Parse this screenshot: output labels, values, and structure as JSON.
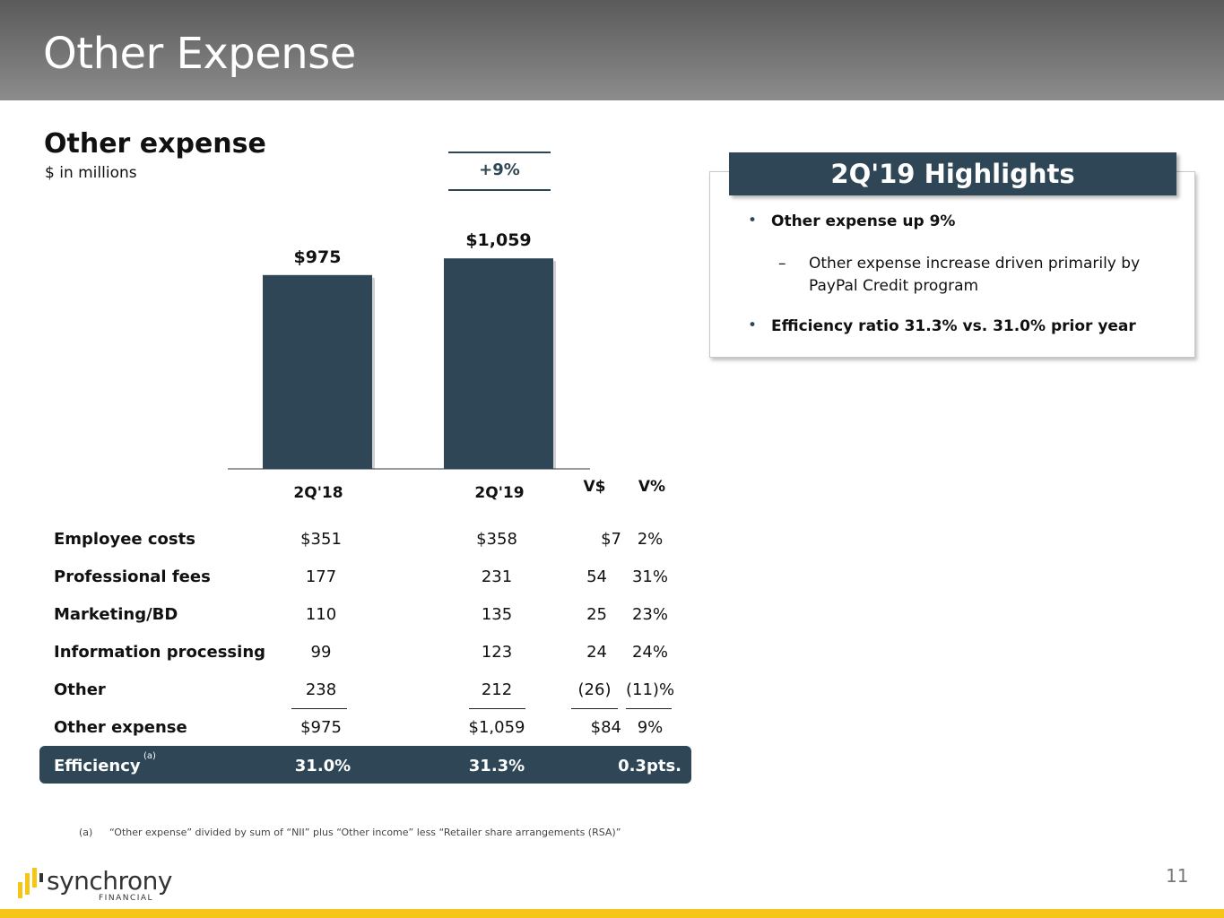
{
  "header": {
    "title": "Other Expense"
  },
  "section": {
    "title": "Other expense",
    "subtitle": "$ in millions",
    "growth": "+9%"
  },
  "chart_data": {
    "type": "bar",
    "categories": [
      "2Q'18",
      "2Q'19"
    ],
    "values": [
      975,
      1059
    ],
    "data_labels": [
      "$975",
      "$1,059"
    ],
    "title": "Other expense",
    "ylabel": "$ in millions",
    "ylim": [
      0,
      1100
    ],
    "bar_color": "#2e4656",
    "grid": false
  },
  "highlights": {
    "title": "2Q'19 Highlights",
    "bullet1": "Other expense up 9%",
    "sub1_dash": "–",
    "sub1_line1": "Other expense increase driven primarily by",
    "sub1_line2": "PayPal Credit program",
    "bullet2": "Efficiency ratio 31.3% vs. 31.0% prior year",
    "bullet_char": "•"
  },
  "table": {
    "headers": {
      "c1": "2Q'18",
      "c2": "2Q'19",
      "c3": "V$",
      "c4": "V%"
    },
    "rows": [
      {
        "label": "Employee costs",
        "q18": "$351",
        "q19": "$358",
        "vd": "$7",
        "vp": "2%"
      },
      {
        "label": "Professional fees",
        "q18": "177",
        "q19": "231",
        "vd": "54",
        "vp": "31%"
      },
      {
        "label": "Marketing/BD",
        "q18": "110",
        "q19": "135",
        "vd": "25",
        "vp": "23%"
      },
      {
        "label": "Information processing",
        "q18": "99",
        "q19": "123",
        "vd": "24",
        "vp": "24%"
      },
      {
        "label": "Other",
        "q18": "238",
        "q19": "212",
        "vd": "(26)",
        "vp": "(11)%"
      },
      {
        "label": "Other expense",
        "q18": "$975",
        "q19": "$1,059",
        "vd": "$84",
        "vp": "9%"
      }
    ],
    "efficiency": {
      "label": "Efficiency",
      "sup": "(a)",
      "q18": "31.0%",
      "q19": "31.3%",
      "change": "0.3pts."
    }
  },
  "footnote": {
    "tag": "(a)",
    "text": "“Other expense” divided by sum of “NII” plus “Other income” less “Retailer share arrangements (RSA)”"
  },
  "footer": {
    "logo": "synchrony",
    "logo_sub": "FINANCIAL",
    "page": "11"
  },
  "colors": {
    "accent": "#2e4656",
    "brand_yellow": "#f5c518"
  }
}
